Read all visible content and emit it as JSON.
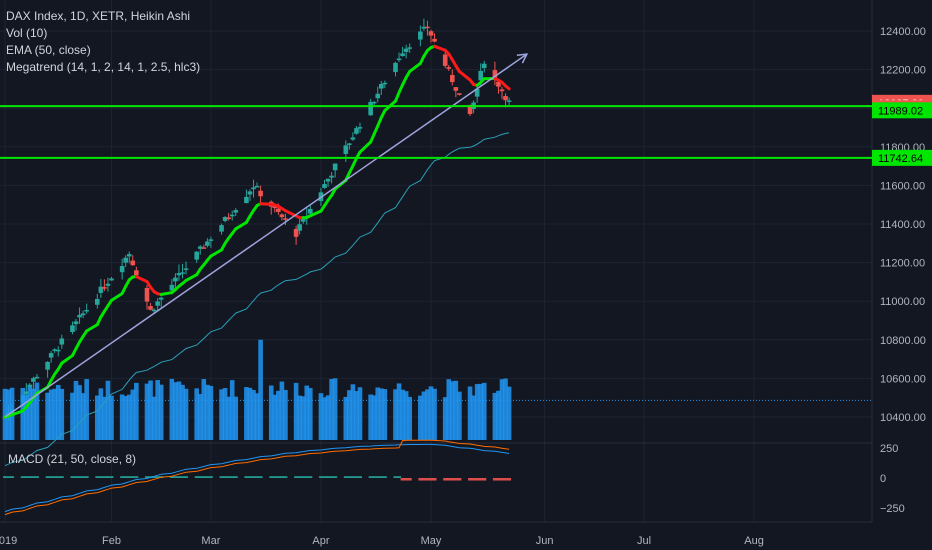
{
  "legend": {
    "title": "DAX Index, 1D, XETR, Heikin Ashi",
    "vol": "Vol (10)",
    "ema": "EMA (50, close)",
    "megatrend": "Megatrend (14, 1, 2, 14, 1, 2.5, hlc3)",
    "macd": "MACD (21, 50, close, 8)"
  },
  "colors": {
    "background": "#131722",
    "grid": "#1e2331",
    "bull": "#26a69a",
    "bear": "#ef5350",
    "trend_up": "#00e600",
    "trend_down": "#ff1a1a",
    "ema": "#2a9fb8",
    "trendline": "#9ea4dd",
    "hline": "#00e600",
    "volume": "#2196f3",
    "macd": "#2196f3",
    "signal": "#ff6d00"
  },
  "chart_data": {
    "type": "candlestick",
    "price_axis": {
      "ticks": [
        "12400.00",
        "12200.00",
        "12000.00",
        "11800.00",
        "11600.00",
        "11400.00",
        "11200.00",
        "11000.00",
        "10800.00",
        "10600.00",
        "10400.00"
      ],
      "ylim": [
        10300,
        12500
      ]
    },
    "x_axis_ticks": [
      {
        "label": "2019",
        "date": "2019-01-02"
      },
      {
        "label": "Feb",
        "date": "2019-02-01"
      },
      {
        "label": "Mar",
        "date": "2019-03-01"
      },
      {
        "label": "Apr",
        "date": "2019-04-01"
      },
      {
        "label": "May",
        "date": "2019-05-02"
      },
      {
        "label": "Jun",
        "date": "2019-06-03"
      },
      {
        "label": "Jul",
        "date": "2019-07-01"
      },
      {
        "label": "Aug",
        "date": "2019-08-01"
      }
    ],
    "price_badges": [
      {
        "text": "12027.80",
        "price": 12027.8,
        "color": "#ef5350"
      },
      {
        "text": "12011.04",
        "price": 12000,
        "color": "#ef5350"
      },
      {
        "text": "11989.02",
        "price": 11989.02,
        "color": "#00e600"
      },
      {
        "text": "11742.64",
        "price": 11742.64,
        "color": "#00e600"
      }
    ],
    "horizontal_lines": [
      12011.04,
      11742.64
    ],
    "key_points": [
      {
        "date": "2019-01-02",
        "price": 10400
      },
      {
        "date": "2019-02-06",
        "price": 11250
      },
      {
        "date": "2019-02-12",
        "price": 10950
      },
      {
        "date": "2019-03-13",
        "price": 11600
      },
      {
        "date": "2019-03-25",
        "price": 11350
      },
      {
        "date": "2019-04-24",
        "price": 12300
      },
      {
        "date": "2019-05-01",
        "price": 12420
      },
      {
        "date": "2019-05-13",
        "price": 11950
      },
      {
        "date": "2019-05-17",
        "price": 12250
      },
      {
        "date": "2019-05-24",
        "price": 12030
      }
    ],
    "trendline": {
      "start": {
        "date": "2019-01-02",
        "price": 10400
      },
      "end": {
        "date": "2019-05-29",
        "price": 12280
      }
    },
    "volume_dotted_level": 0.45,
    "macd_axis": {
      "ticks": [
        "250",
        "0",
        "-250"
      ],
      "ylim": [
        -330,
        290
      ]
    }
  },
  "macd_label": {
    "tick_250": "250",
    "tick_0": "0",
    "tick_m250": "−250"
  }
}
